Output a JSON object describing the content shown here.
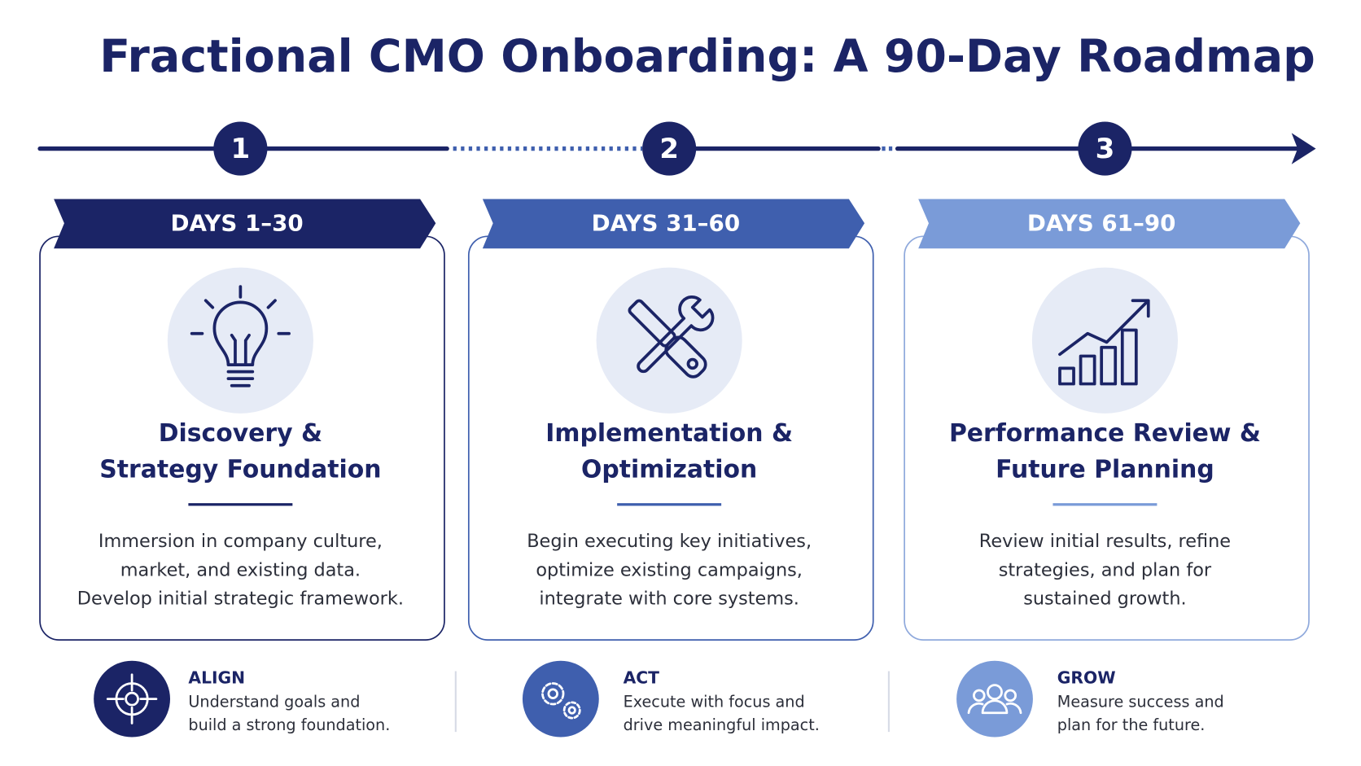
{
  "title": "Fractional CMO Onboarding: A 90-Day Roadmap",
  "steps": [
    {
      "number": 1,
      "days": "DAYS 1–30",
      "heading_lines": [
        "Discovery &",
        "Strategy Foundation"
      ],
      "description_lines": [
        "Immersion in company culture,",
        "market, and existing data.",
        "Develop initial strategic framework."
      ]
    },
    {
      "number": 2,
      "days": "DAYS 31–60",
      "heading_lines": [
        "Implementation &",
        "Optimization"
      ],
      "description_lines": [
        "Begin executing key initiatives,",
        "optimize existing campaigns,",
        "integrate with core systems."
      ]
    },
    {
      "number": 3,
      "days": "DAYS 61–90",
      "heading_lines": [
        "Performance Review &",
        "Future Planning"
      ],
      "description_lines": [
        "Review initial results, refine",
        "strategies, and plan for",
        "sustained growth."
      ]
    }
  ],
  "summary": [
    {
      "label": "ALIGN",
      "lines": [
        "Understand goals and",
        "build a strong foundation."
      ]
    },
    {
      "label": "ACT",
      "lines": [
        "Execute with focus and",
        "drive meaningful impact."
      ]
    },
    {
      "label": "GROW",
      "lines": [
        "Measure success and",
        "plan for the future."
      ]
    }
  ]
}
